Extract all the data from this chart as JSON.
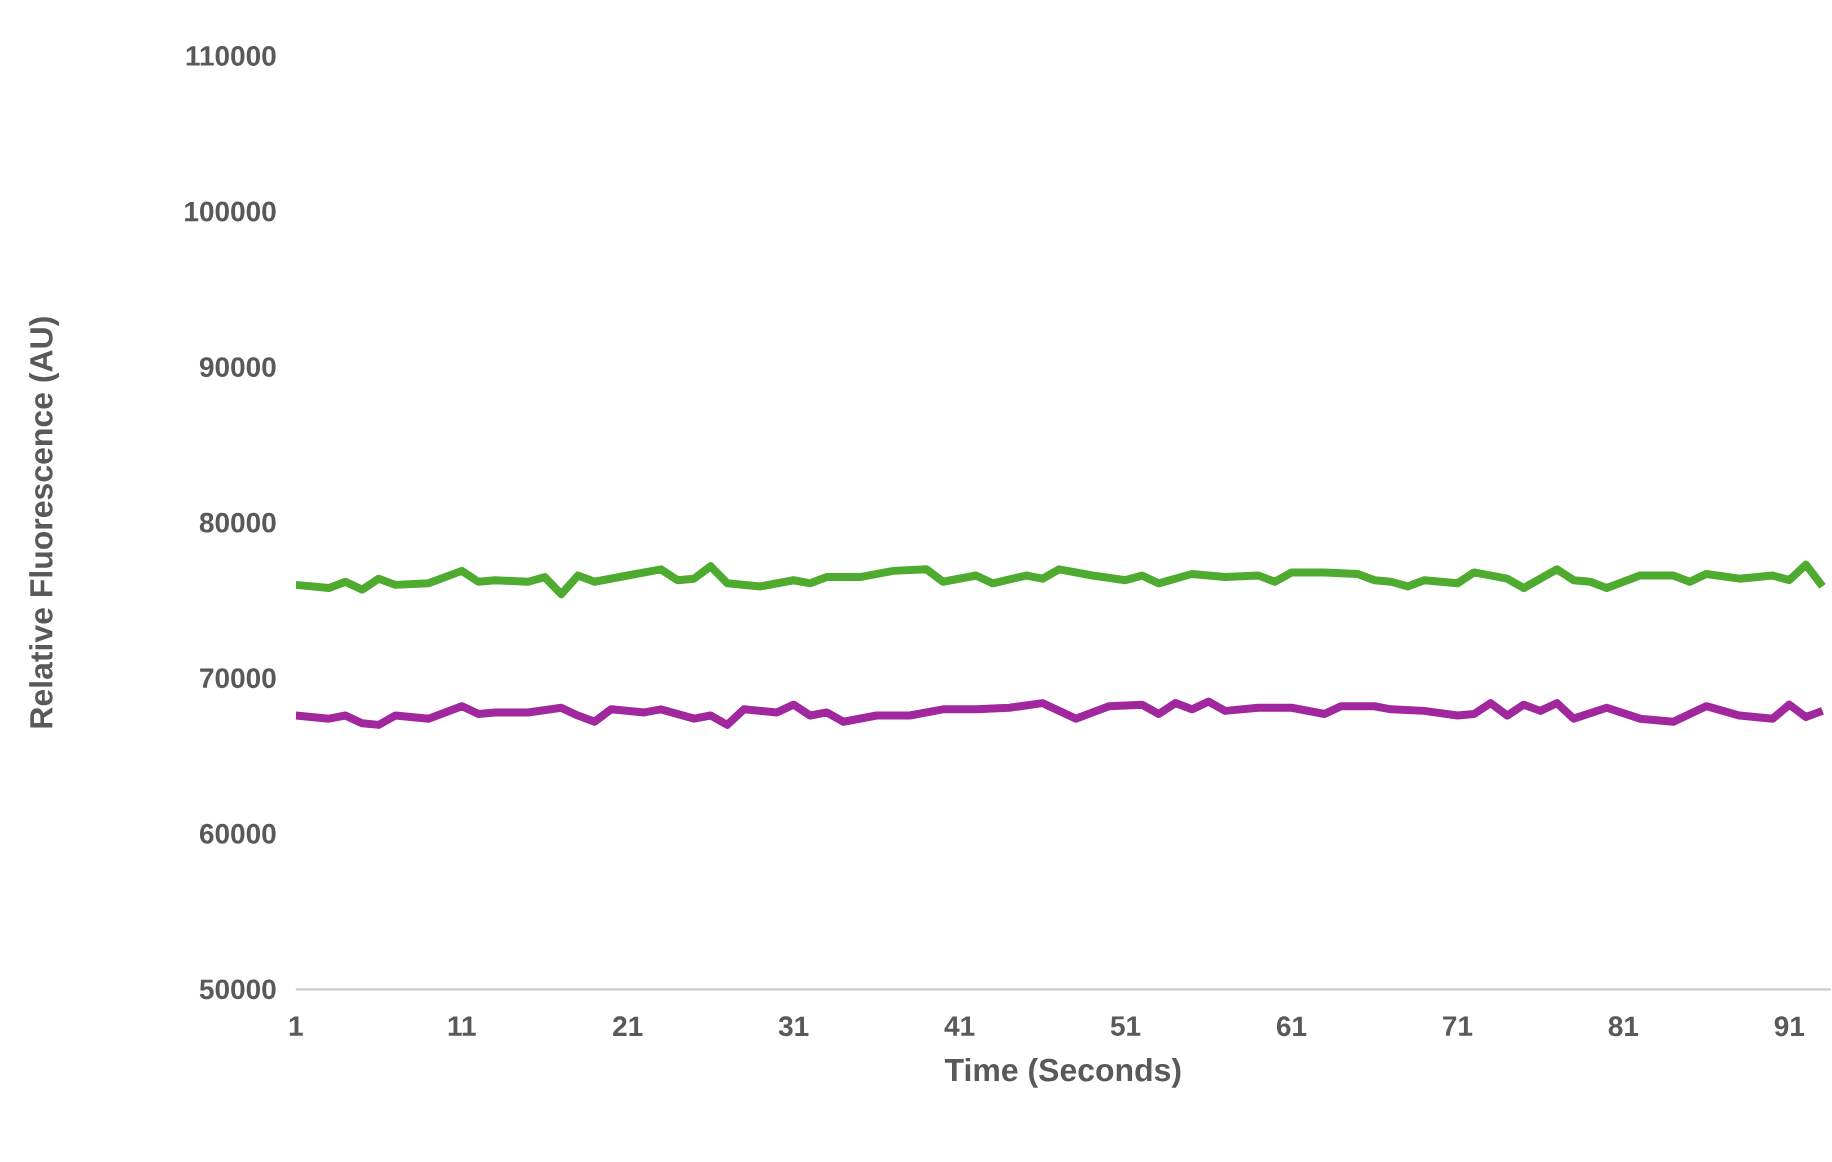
{
  "chart_data": {
    "type": "line",
    "xlabel": "Time (Seconds)",
    "ylabel": "Relative Fluorescence (AU)",
    "xlim": [
      1,
      93.5
    ],
    "xticks": [
      1,
      11,
      21,
      31,
      41,
      51,
      61,
      71,
      81,
      91
    ],
    "ylim": [
      50000,
      110000
    ],
    "yticks": [
      50000,
      60000,
      70000,
      80000,
      90000,
      100000,
      110000
    ],
    "grid": false,
    "legend": false,
    "marker": "none",
    "line_style": "solid",
    "series": [
      {
        "color": "#4eab2f",
        "x": [
          1,
          3,
          4,
          5,
          6,
          7,
          9,
          11,
          12,
          13,
          15,
          16,
          17,
          18,
          19,
          21,
          23,
          24,
          25,
          26,
          27,
          29,
          31,
          32,
          33,
          35,
          37,
          39,
          40,
          42,
          43,
          45,
          46,
          47,
          49,
          51,
          52,
          53,
          55,
          57,
          59,
          60,
          61,
          63,
          65,
          66,
          67,
          68,
          69,
          71,
          72,
          74,
          75,
          77,
          78,
          79,
          80,
          82,
          84,
          85,
          86,
          88,
          90,
          91,
          92,
          93
        ],
        "values": [
          76000,
          75800,
          76200,
          75700,
          76400,
          76000,
          76100,
          76900,
          76200,
          76300,
          76200,
          76500,
          75400,
          76600,
          76200,
          76600,
          77000,
          76300,
          76400,
          77200,
          76100,
          75900,
          76300,
          76100,
          76500,
          76500,
          76900,
          77000,
          76200,
          76600,
          76100,
          76600,
          76400,
          77000,
          76600,
          76300,
          76600,
          76100,
          76700,
          76500,
          76600,
          76200,
          76800,
          76800,
          76700,
          76300,
          76200,
          75900,
          76300,
          76100,
          76800,
          76400,
          75800,
          77000,
          76300,
          76200,
          75800,
          76600,
          76600,
          76200,
          76700,
          76400,
          76600,
          76300,
          77300,
          75900
        ]
      },
      {
        "color": "#a1279f",
        "x": [
          1,
          3,
          4,
          5,
          6,
          7,
          9,
          11,
          12,
          13,
          15,
          17,
          18,
          19,
          20,
          22,
          23,
          25,
          26,
          27,
          28,
          30,
          31,
          32,
          33,
          34,
          36,
          38,
          40,
          42,
          44,
          46,
          47,
          48,
          50,
          52,
          53,
          54,
          55,
          56,
          57,
          59,
          61,
          63,
          64,
          66,
          67,
          69,
          71,
          72,
          73,
          74,
          75,
          76,
          77,
          78,
          80,
          82,
          84,
          86,
          88,
          90,
          91,
          92,
          93
        ],
        "values": [
          67600,
          67400,
          67600,
          67100,
          67000,
          67600,
          67400,
          68200,
          67700,
          67800,
          67800,
          68100,
          67600,
          67200,
          68000,
          67800,
          68000,
          67400,
          67600,
          67000,
          68000,
          67800,
          68300,
          67600,
          67800,
          67200,
          67600,
          67600,
          68000,
          68000,
          68100,
          68400,
          67900,
          67400,
          68200,
          68300,
          67700,
          68400,
          68000,
          68500,
          67900,
          68100,
          68100,
          67700,
          68200,
          68200,
          68000,
          67900,
          67600,
          67700,
          68400,
          67600,
          68300,
          67900,
          68400,
          67400,
          68100,
          67400,
          67200,
          68200,
          67600,
          67400,
          68300,
          67500,
          67900
        ]
      }
    ]
  }
}
